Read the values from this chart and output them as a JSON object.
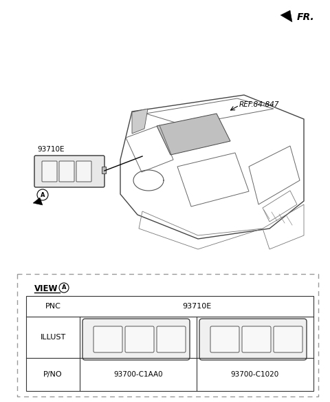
{
  "bg_color": "#ffffff",
  "fr_label": "FR.",
  "ref_label": "REF.84-847",
  "part_label": "93710E",
  "circle_label": "A",
  "view_label": "VIEW",
  "pnc_label": "PNC",
  "pnc_value": "93710E",
  "illust_label": "ILLUST",
  "pno_label": "P/NO",
  "pno_val1": "93700-C1AA0",
  "pno_val2": "93700-C1020"
}
